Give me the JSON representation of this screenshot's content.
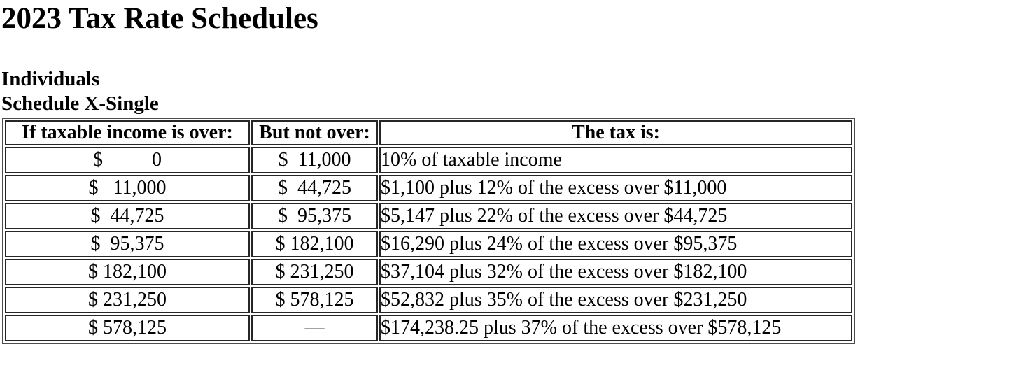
{
  "page": {
    "title": "2023 Tax Rate Schedules",
    "section_line1": "Individuals",
    "section_line2": "Schedule X-Single"
  },
  "table": {
    "headers": {
      "over": "If taxable income is over:",
      "not_over": "But not over:",
      "tax": "The tax is:"
    },
    "rows": [
      {
        "over": "$          0",
        "not_over": "$  11,000",
        "tax": "10% of taxable income"
      },
      {
        "over": "$   11,000",
        "not_over": "$  44,725",
        "tax": "$1,100 plus 12% of the excess over $11,000"
      },
      {
        "over": "$  44,725",
        "not_over": "$  95,375",
        "tax": "$5,147 plus 22% of the excess over $44,725"
      },
      {
        "over": "$  95,375",
        "not_over": "$ 182,100",
        "tax": "$16,290 plus 24% of the excess over $95,375"
      },
      {
        "over": "$ 182,100",
        "not_over": "$ 231,250",
        "tax": "$37,104 plus 32% of the excess over $182,100"
      },
      {
        "over": "$ 231,250",
        "not_over": "$ 578,125",
        "tax": "$52,832 plus 35% of the excess over $231,250"
      },
      {
        "over": "$ 578,125",
        "not_over": "—",
        "tax": "$174,238.25 plus 37% of the excess over $578,125"
      }
    ]
  },
  "colors": {
    "text": "#000000",
    "background": "#ffffff",
    "table_outer_border": "#4d4d4d",
    "cell_border": "#262626"
  }
}
